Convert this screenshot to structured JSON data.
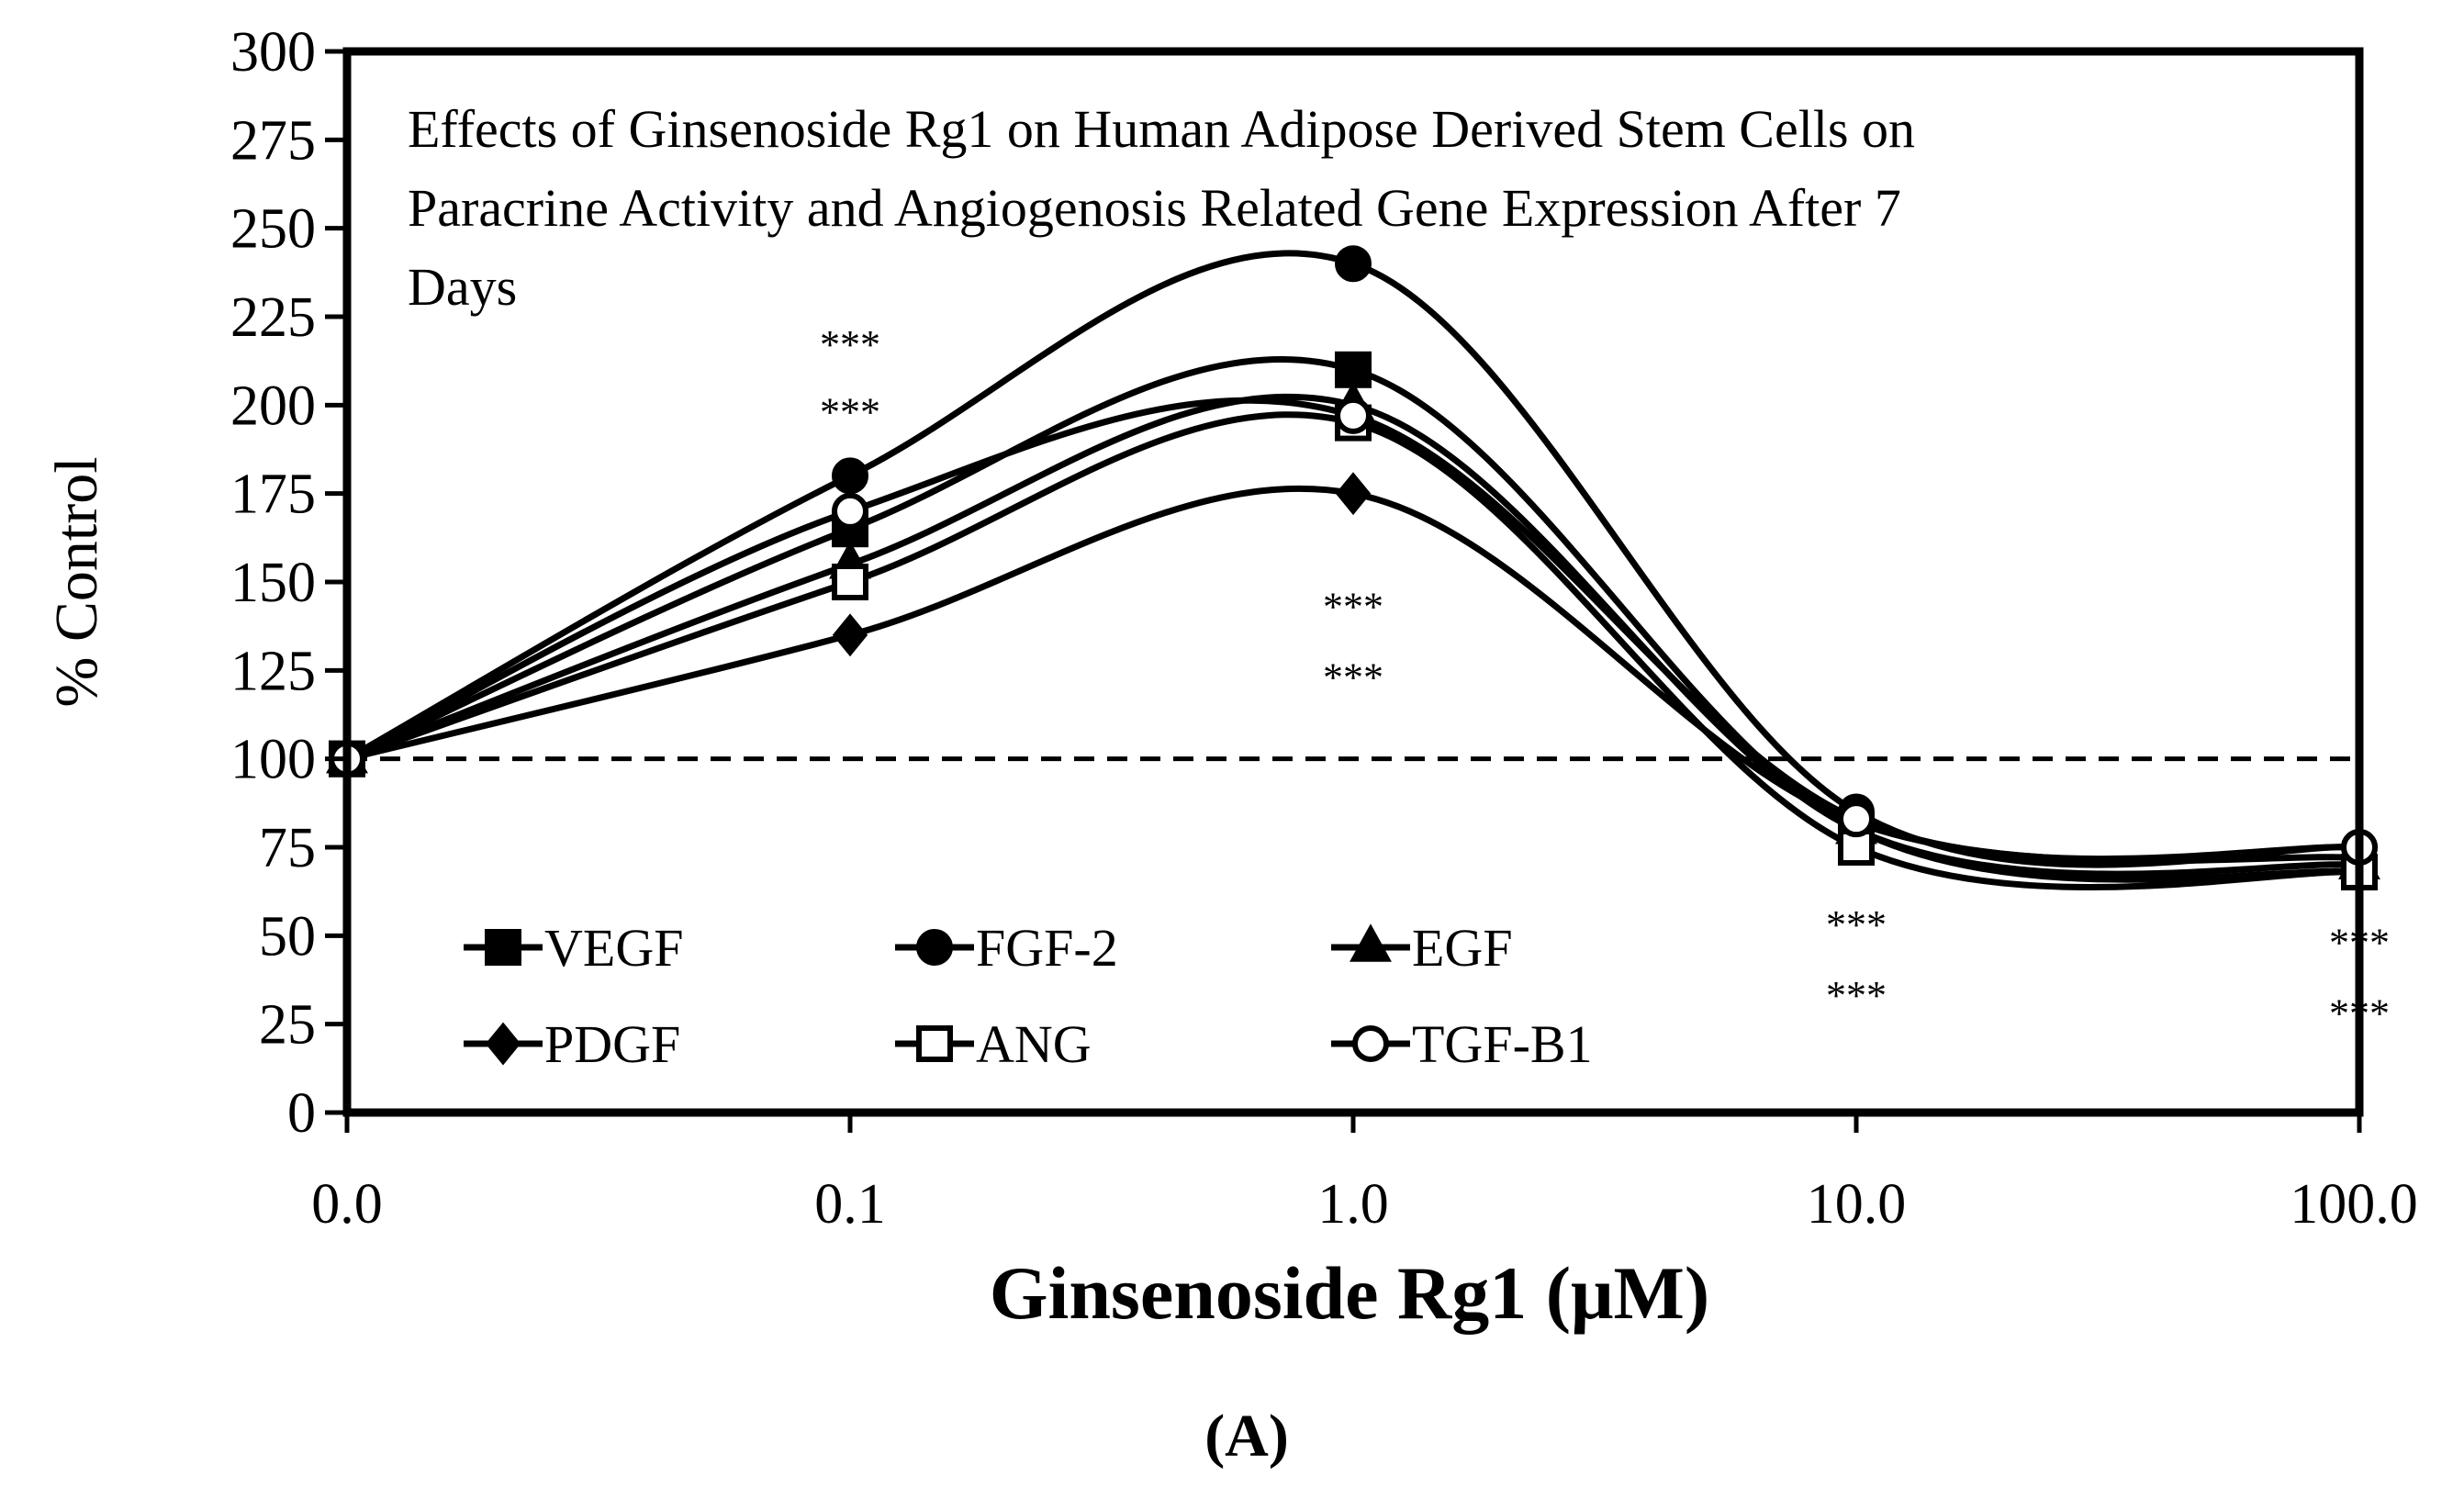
{
  "chart_data": {
    "type": "line",
    "title_lines": [
      "Effects of Ginsenoside Rg1 on Human Adipose Derived Stem Cells on",
      "Paracrine Activity and Angiogenosis Related Gene Expression After 7",
      "Days"
    ],
    "xlabel": "Ginsenoside Rg1 (μM)",
    "ylabel": "% Control",
    "panel_label": "(A)",
    "x_categories": [
      "0.0",
      "0.1",
      "1.0",
      "10.0",
      "100.0"
    ],
    "ylim": [
      0,
      300
    ],
    "y_ticks": [
      0,
      25,
      50,
      75,
      100,
      125,
      150,
      175,
      200,
      225,
      250,
      275,
      300
    ],
    "y_tick_labels": [
      "0",
      "25",
      "50",
      "75",
      "100",
      "125",
      "150",
      "175",
      "200",
      "225",
      "250",
      "275",
      "300"
    ],
    "reference_line": 100,
    "series": [
      {
        "name": "VEGF",
        "marker": "square-filled",
        "values": [
          100,
          165,
          210,
          80,
          68
        ]
      },
      {
        "name": "FGF-2",
        "marker": "circle-filled",
        "values": [
          100,
          180,
          240,
          85,
          75
        ]
      },
      {
        "name": "EGF",
        "marker": "triangle-filled",
        "values": [
          100,
          155,
          200,
          80,
          70
        ]
      },
      {
        "name": "PDGF",
        "marker": "diamond-filled",
        "values": [
          100,
          135,
          175,
          82,
          72
        ]
      },
      {
        "name": "ANG",
        "marker": "square-open",
        "values": [
          100,
          150,
          195,
          75,
          68
        ]
      },
      {
        "name": "TGF-B1",
        "marker": "circle-open",
        "values": [
          100,
          170,
          197,
          83,
          75
        ]
      }
    ],
    "annotations": [
      {
        "text": "***",
        "x_index": 1,
        "y": 219
      },
      {
        "text": "***",
        "x_index": 1,
        "y": 200
      },
      {
        "text": "***",
        "x_index": 2,
        "y": 145
      },
      {
        "text": "***",
        "x_index": 2,
        "y": 125
      },
      {
        "text": "***",
        "x_index": 3,
        "y": 55
      },
      {
        "text": "***",
        "x_index": 3,
        "y": 35
      },
      {
        "text": "***",
        "x_index": 4,
        "y": 50
      },
      {
        "text": "***",
        "x_index": 4,
        "y": 30
      }
    ],
    "legend_position": "bottom-left inside plot"
  }
}
